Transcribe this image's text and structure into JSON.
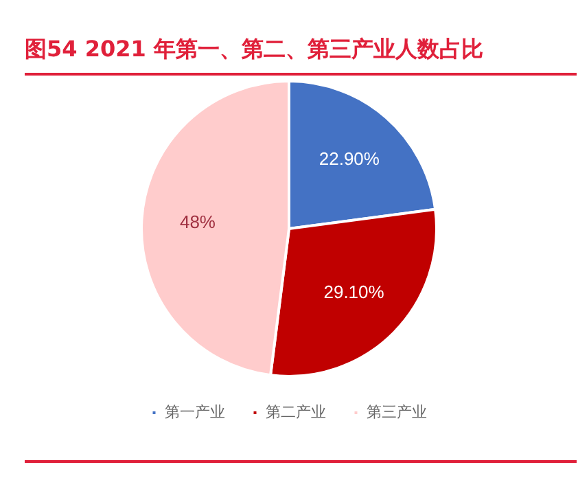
{
  "chart_data": {
    "type": "pie",
    "title": "图54  2021 年第一、第二、第三产业人数占比",
    "categories": [
      "第一产业",
      "第二产业",
      "第三产业"
    ],
    "values": [
      22.9,
      29.1,
      48
    ],
    "value_labels": [
      "22.90%",
      "29.10%",
      "48%"
    ],
    "colors": [
      "#4472c4",
      "#c00000",
      "#ffcccc"
    ],
    "legend": "bottom"
  }
}
